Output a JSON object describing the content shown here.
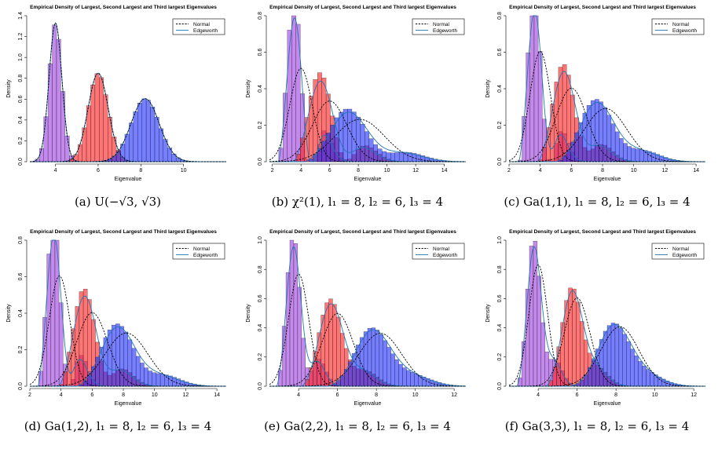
{
  "chart_data": [
    {
      "type": "bar",
      "panel": "a",
      "title": "Empirical Density of Largest, Second Largest and Third largest Eigenvalues",
      "xlabel": "Eigenvalue",
      "ylabel": "Density",
      "xlim": [
        2.8,
        12.0
      ],
      "ylim": [
        0,
        1.4
      ],
      "xticks": [
        4,
        6,
        8,
        10
      ],
      "yticks": [
        0,
        0.2,
        0.4,
        0.6,
        0.8,
        1.0,
        1.2,
        1.4
      ],
      "legend": {
        "position": "top-right",
        "entries": [
          "Normal",
          "Edgeworth"
        ]
      },
      "caption": "(a) U(−√3, √3)",
      "series": [
        {
          "mean": 4.0,
          "sd": 0.3,
          "skew": 0.0
        },
        {
          "mean": 6.0,
          "sd": 0.47,
          "skew": 0.0
        },
        {
          "mean": 8.2,
          "sd": 0.66,
          "skew": 0.0
        }
      ],
      "binwidth": 0.2
    },
    {
      "type": "bar",
      "panel": "b",
      "title": "Empirical Density of Largest, Second Largest and Third largest Eigenvalues",
      "xlabel": "Eigenvalue",
      "ylabel": "Density",
      "xlim": [
        1.8,
        15.5
      ],
      "ylim": [
        0,
        0.8
      ],
      "xticks": [
        2,
        4,
        6,
        8,
        10,
        12,
        14
      ],
      "yticks": [
        0,
        0.2,
        0.4,
        0.6,
        0.8
      ],
      "legend": {
        "position": "top-right",
        "entries": [
          "Normal",
          "Edgeworth"
        ]
      },
      "caption": "(b) χ²(1), l₁ = 8, l₂ = 6, l₃ = 4",
      "series": [
        {
          "mean": 4.0,
          "sd": 0.78,
          "skew": 3.2
        },
        {
          "mean": 6.0,
          "sd": 1.2,
          "skew": 2.2
        },
        {
          "mean": 8.1,
          "sd": 1.72,
          "skew": 1.4
        }
      ],
      "binwidth": 0.3
    },
    {
      "type": "bar",
      "panel": "c",
      "title": "Empirical Density of Largest, Second Largest and Third largest Eigenvalues",
      "xlabel": "Eigenvalue",
      "ylabel": "Density",
      "xlim": [
        2.0,
        14.6
      ],
      "ylim": [
        0,
        0.8
      ],
      "xticks": [
        2,
        4,
        6,
        8,
        10,
        12,
        14
      ],
      "yticks": [
        0,
        0.2,
        0.4,
        0.6,
        0.8
      ],
      "legend": {
        "position": "top-right",
        "entries": [
          "Normal",
          "Edgeworth"
        ]
      },
      "caption": "(c) Ga(1,1), l₁ = 8, l₂ = 6, l₃ = 4",
      "series": [
        {
          "mean": 4.0,
          "sd": 0.66,
          "skew": 2.4
        },
        {
          "mean": 6.0,
          "sd": 0.99,
          "skew": 1.7
        },
        {
          "mean": 8.2,
          "sd": 1.37,
          "skew": 1.1
        }
      ],
      "binwidth": 0.26
    },
    {
      "type": "bar",
      "panel": "d",
      "title": "Empirical Density of Largest, Second Largest and Third largest Eigenvalues",
      "xlabel": "Eigenvalue",
      "ylabel": "Density",
      "xlim": [
        2.0,
        14.6
      ],
      "ylim": [
        0,
        0.8
      ],
      "xticks": [
        2,
        4,
        6,
        8,
        10,
        12,
        14
      ],
      "yticks": [
        0,
        0.2,
        0.4,
        0.6,
        0.8
      ],
      "legend": {
        "position": "top-right",
        "entries": [
          "Normal",
          "Edgeworth"
        ]
      },
      "caption": "(d) Ga(1,2), l₁ = 8, l₂ = 6, l₃ = 4",
      "series": [
        {
          "mean": 3.9,
          "sd": 0.66,
          "skew": 2.4
        },
        {
          "mean": 6.0,
          "sd": 0.99,
          "skew": 1.7
        },
        {
          "mean": 8.2,
          "sd": 1.37,
          "skew": 1.1
        }
      ],
      "binwidth": 0.26
    },
    {
      "type": "bar",
      "panel": "e",
      "title": "Empirical Density of Largest, Second Largest and Third largest Eigenvalues",
      "xlabel": "Eigenvalue",
      "ylabel": "Density",
      "xlim": [
        2.5,
        12.6
      ],
      "ylim": [
        0,
        1.0
      ],
      "xticks": [
        4,
        6,
        8,
        10,
        12
      ],
      "yticks": [
        0,
        0.2,
        0.4,
        0.6,
        0.8,
        1.0
      ],
      "legend": {
        "position": "top-right",
        "entries": [
          "Normal",
          "Edgeworth"
        ]
      },
      "caption": "(e) Ga(2,2), l₁ = 8, l₂ = 6, l₃ = 4",
      "series": [
        {
          "mean": 4.0,
          "sd": 0.52,
          "skew": 1.8
        },
        {
          "mean": 6.0,
          "sd": 0.8,
          "skew": 1.2
        },
        {
          "mean": 8.2,
          "sd": 1.1,
          "skew": 0.8
        }
      ],
      "binwidth": 0.2
    },
    {
      "type": "bar",
      "panel": "f",
      "title": "Empirical Density of Largest, Second Largest and Third largest Eigenvalues",
      "xlabel": "Eigenvalue",
      "ylabel": "Density",
      "xlim": [
        2.5,
        12.6
      ],
      "ylim": [
        0,
        1.0
      ],
      "xticks": [
        4,
        6,
        8,
        10,
        12
      ],
      "yticks": [
        0,
        0.2,
        0.4,
        0.6,
        0.8,
        1.0
      ],
      "legend": {
        "position": "top-right",
        "entries": [
          "Normal",
          "Edgeworth"
        ]
      },
      "caption": "(f) Ga(3,3), l₁ = 8, l₂ = 6, l₃ = 4",
      "series": [
        {
          "mean": 4.0,
          "sd": 0.48,
          "skew": 1.3
        },
        {
          "mean": 6.0,
          "sd": 0.66,
          "skew": 0.9
        },
        {
          "mean": 8.2,
          "sd": 0.98,
          "skew": 0.6
        }
      ],
      "binwidth": 0.2
    }
  ],
  "colors": {
    "third_hist": "#a040e0",
    "second_hist": "#ff2020",
    "largest_hist": "#2030ff",
    "edgeworth_line": "#1f77b4",
    "normal_line": "#000000"
  }
}
